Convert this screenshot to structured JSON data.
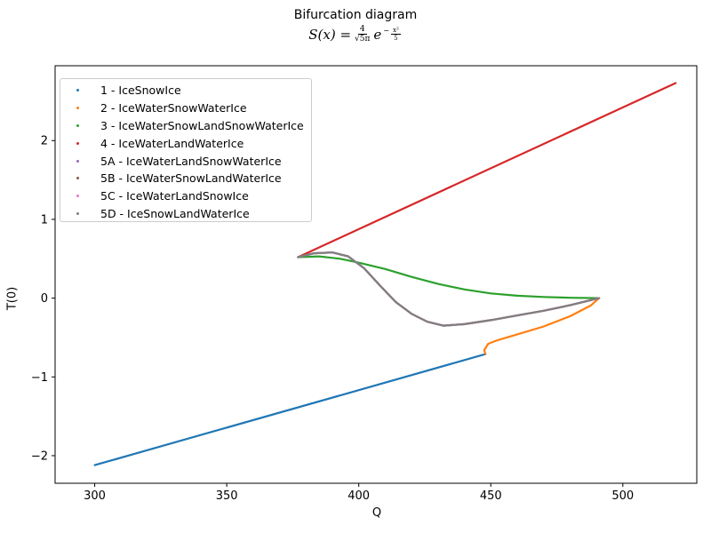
{
  "chart_data": {
    "type": "line",
    "title": "Bifurcation diagram",
    "subtitle": {
      "lhs": "S(x) =",
      "numerator": "4",
      "denominator": "√5π",
      "base": "e",
      "exponent_sign": "−",
      "exponent_numerator": "x²",
      "exponent_denominator": "5"
    },
    "xlabel": "Q",
    "ylabel": "T(0)",
    "xlim": [
      285,
      528
    ],
    "ylim": [
      -2.35,
      2.95
    ],
    "xticks": [
      300,
      350,
      400,
      450,
      500
    ],
    "yticks": [
      -2,
      -1,
      0,
      1,
      2
    ],
    "xtick_labels": [
      "300",
      "350",
      "400",
      "450",
      "500"
    ],
    "ytick_labels": [
      "−2",
      "−1",
      "0",
      "1",
      "2"
    ],
    "grid": false,
    "legend_position": "upper-left",
    "series": [
      {
        "name": "1 - IceSnowIce",
        "color": "#1f77b4",
        "points": [
          [
            300,
            -2.12
          ],
          [
            448,
            -0.71
          ]
        ]
      },
      {
        "name": "2 - IceWaterSnowWaterIce",
        "color": "#ff7f0e",
        "points": [
          [
            448,
            -0.71
          ],
          [
            447.5,
            -0.66
          ],
          [
            449,
            -0.58
          ],
          [
            452,
            -0.54
          ],
          [
            460,
            -0.46
          ],
          [
            470,
            -0.36
          ],
          [
            480,
            -0.23
          ],
          [
            488,
            -0.09
          ],
          [
            491,
            0.0
          ]
        ]
      },
      {
        "name": "3 - IceWaterSnowLandSnowWaterIce",
        "color": "#2ca02c",
        "points": [
          [
            377,
            0.52
          ],
          [
            385,
            0.53
          ],
          [
            393,
            0.5
          ],
          [
            400,
            0.45
          ],
          [
            410,
            0.37
          ],
          [
            420,
            0.27
          ],
          [
            430,
            0.18
          ],
          [
            440,
            0.11
          ],
          [
            450,
            0.06
          ],
          [
            460,
            0.03
          ],
          [
            470,
            0.015
          ],
          [
            480,
            0.005
          ],
          [
            491,
            0.0
          ]
        ]
      },
      {
        "name": "4 - IceWaterLandWaterIce",
        "color": "#d62728",
        "points": [
          [
            377,
            0.52
          ],
          [
            520,
            2.73
          ]
        ]
      },
      {
        "name": "5A - IceWaterLandSnowWaterIce",
        "color": "#9467bd",
        "points": [
          [
            377,
            0.52
          ],
          [
            383,
            0.57
          ],
          [
            390,
            0.58
          ],
          [
            396,
            0.53
          ],
          [
            402,
            0.38
          ],
          [
            408,
            0.16
          ],
          [
            414,
            -0.05
          ],
          [
            420,
            -0.2
          ],
          [
            426,
            -0.3
          ],
          [
            432,
            -0.35
          ],
          [
            440,
            -0.33
          ],
          [
            450,
            -0.28
          ],
          [
            460,
            -0.22
          ],
          [
            470,
            -0.16
          ],
          [
            480,
            -0.09
          ],
          [
            491,
            0.0
          ]
        ]
      },
      {
        "name": "5B - IceWaterSnowLandWaterIce",
        "color": "#8c564b",
        "points": [
          [
            377,
            0.52
          ],
          [
            383,
            0.57
          ],
          [
            390,
            0.58
          ],
          [
            396,
            0.53
          ],
          [
            402,
            0.38
          ],
          [
            408,
            0.16
          ],
          [
            414,
            -0.05
          ],
          [
            420,
            -0.2
          ],
          [
            426,
            -0.3
          ],
          [
            432,
            -0.35
          ],
          [
            440,
            -0.33
          ],
          [
            450,
            -0.28
          ],
          [
            460,
            -0.22
          ],
          [
            470,
            -0.16
          ],
          [
            480,
            -0.09
          ],
          [
            491,
            0.0
          ]
        ]
      },
      {
        "name": "5C - IceWaterLandSnowIce",
        "color": "#e377c2",
        "points": [
          [
            377,
            0.52
          ],
          [
            383,
            0.57
          ],
          [
            390,
            0.58
          ],
          [
            396,
            0.53
          ],
          [
            402,
            0.38
          ],
          [
            408,
            0.16
          ],
          [
            414,
            -0.05
          ],
          [
            420,
            -0.2
          ],
          [
            426,
            -0.3
          ],
          [
            432,
            -0.35
          ],
          [
            440,
            -0.33
          ],
          [
            450,
            -0.28
          ],
          [
            460,
            -0.22
          ],
          [
            470,
            -0.16
          ],
          [
            480,
            -0.09
          ],
          [
            491,
            0.0
          ]
        ]
      },
      {
        "name": "5D - IceSnowLandWaterIce",
        "color": "#7f7f7f",
        "points": [
          [
            377,
            0.52
          ],
          [
            383,
            0.57
          ],
          [
            390,
            0.58
          ],
          [
            396,
            0.53
          ],
          [
            402,
            0.38
          ],
          [
            408,
            0.16
          ],
          [
            414,
            -0.05
          ],
          [
            420,
            -0.2
          ],
          [
            426,
            -0.3
          ],
          [
            432,
            -0.35
          ],
          [
            440,
            -0.33
          ],
          [
            450,
            -0.28
          ],
          [
            460,
            -0.22
          ],
          [
            470,
            -0.16
          ],
          [
            480,
            -0.09
          ],
          [
            491,
            0.0
          ]
        ]
      }
    ]
  }
}
